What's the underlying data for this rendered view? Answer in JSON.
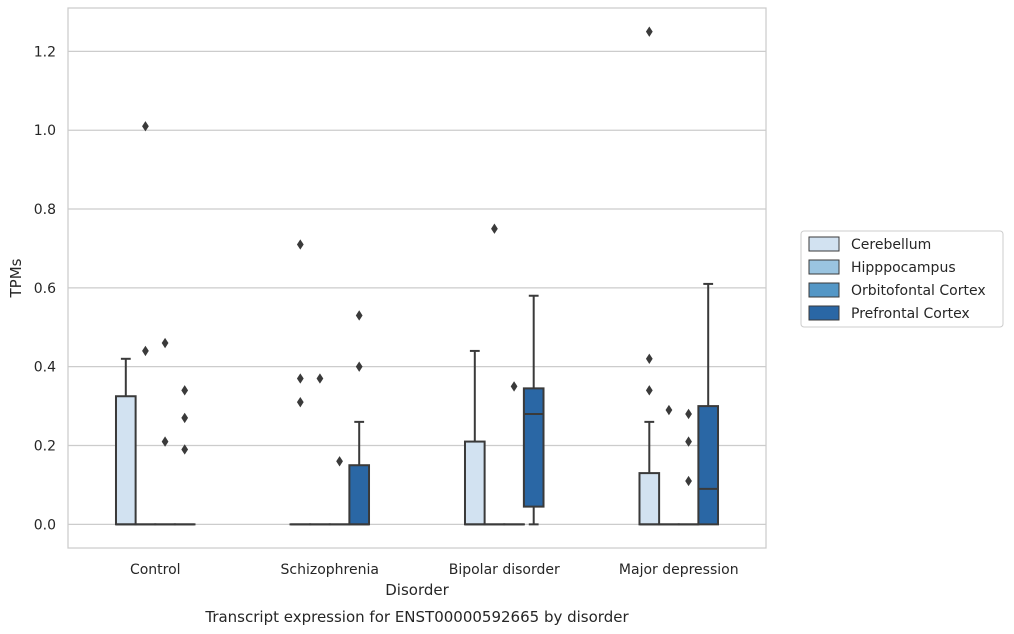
{
  "chart_data": {
    "type": "box",
    "xlabel": "Disorder",
    "ylabel": "TPMs",
    "caption": "Transcript expression for ENST00000592665 by disorder",
    "categories": [
      "Control",
      "Schizophrenia",
      "Bipolar disorder",
      "Major depression"
    ],
    "ylim": [
      -0.06,
      1.31
    ],
    "yticks": [
      0.0,
      0.2,
      0.4,
      0.6,
      0.8,
      1.0,
      1.2
    ],
    "ytick_labels": [
      "0.0",
      "0.2",
      "0.4",
      "0.6",
      "0.8",
      "1.0",
      "1.2"
    ],
    "grid": true,
    "legend_position": "right",
    "series": [
      {
        "name": "Cerebellum",
        "color": "#d2e2f1",
        "boxes": [
          {
            "q1": 0,
            "median": 0,
            "q3": 0.325,
            "whislo": 0,
            "whishi": 0.42,
            "fliers": []
          },
          {
            "q1": 0,
            "median": 0,
            "q3": 0,
            "whislo": 0,
            "whishi": 0,
            "fliers": [
              0.71,
              0.37,
              0.31
            ]
          },
          {
            "q1": 0,
            "median": 0,
            "q3": 0.21,
            "whislo": 0,
            "whishi": 0.44,
            "fliers": []
          },
          {
            "q1": 0,
            "median": 0,
            "q3": 0.13,
            "whislo": 0,
            "whishi": 0.26,
            "fliers": [
              1.25,
              0.42,
              0.34
            ]
          }
        ]
      },
      {
        "name": "Hipppocampus",
        "color": "#9ac4e0",
        "boxes": [
          {
            "q1": 0,
            "median": 0,
            "q3": 0,
            "whislo": 0,
            "whishi": 0,
            "fliers": [
              1.01,
              0.44
            ]
          },
          {
            "q1": 0,
            "median": 0,
            "q3": 0,
            "whislo": 0,
            "whishi": 0,
            "fliers": [
              0.37
            ]
          },
          {
            "q1": 0,
            "median": 0,
            "q3": 0,
            "whislo": 0,
            "whishi": 0,
            "fliers": [
              0.75
            ]
          },
          {
            "q1": 0,
            "median": 0,
            "q3": 0,
            "whislo": 0,
            "whishi": 0,
            "fliers": [
              0.29
            ]
          }
        ]
      },
      {
        "name": "Orbitofontal Cortex",
        "color": "#5497c6",
        "boxes": [
          {
            "q1": 0,
            "median": 0,
            "q3": 0,
            "whislo": 0,
            "whishi": 0,
            "fliers": [
              0.46,
              0.21
            ]
          },
          {
            "q1": 0,
            "median": 0,
            "q3": 0,
            "whislo": 0,
            "whishi": 0,
            "fliers": [
              0.16
            ]
          },
          {
            "q1": 0,
            "median": 0,
            "q3": 0,
            "whislo": 0,
            "whishi": 0,
            "fliers": [
              0.35
            ]
          },
          {
            "q1": 0,
            "median": 0,
            "q3": 0,
            "whislo": 0,
            "whishi": 0,
            "fliers": [
              0.28,
              0.21,
              0.11
            ]
          }
        ]
      },
      {
        "name": "Prefrontal Cortex",
        "color": "#2a67a5",
        "boxes": [
          {
            "q1": 0,
            "median": 0,
            "q3": 0,
            "whislo": 0,
            "whishi": 0,
            "fliers": [
              0.34,
              0.27,
              0.19
            ]
          },
          {
            "q1": 0,
            "median": 0,
            "q3": 0.15,
            "whislo": 0,
            "whishi": 0.26,
            "fliers": [
              0.53,
              0.4
            ]
          },
          {
            "q1": 0.045,
            "median": 0.28,
            "q3": 0.345,
            "whislo": 0,
            "whishi": 0.58,
            "fliers": []
          },
          {
            "q1": 0,
            "median": 0.09,
            "q3": 0.3,
            "whislo": 0,
            "whishi": 0.61,
            "fliers": []
          }
        ]
      }
    ]
  }
}
